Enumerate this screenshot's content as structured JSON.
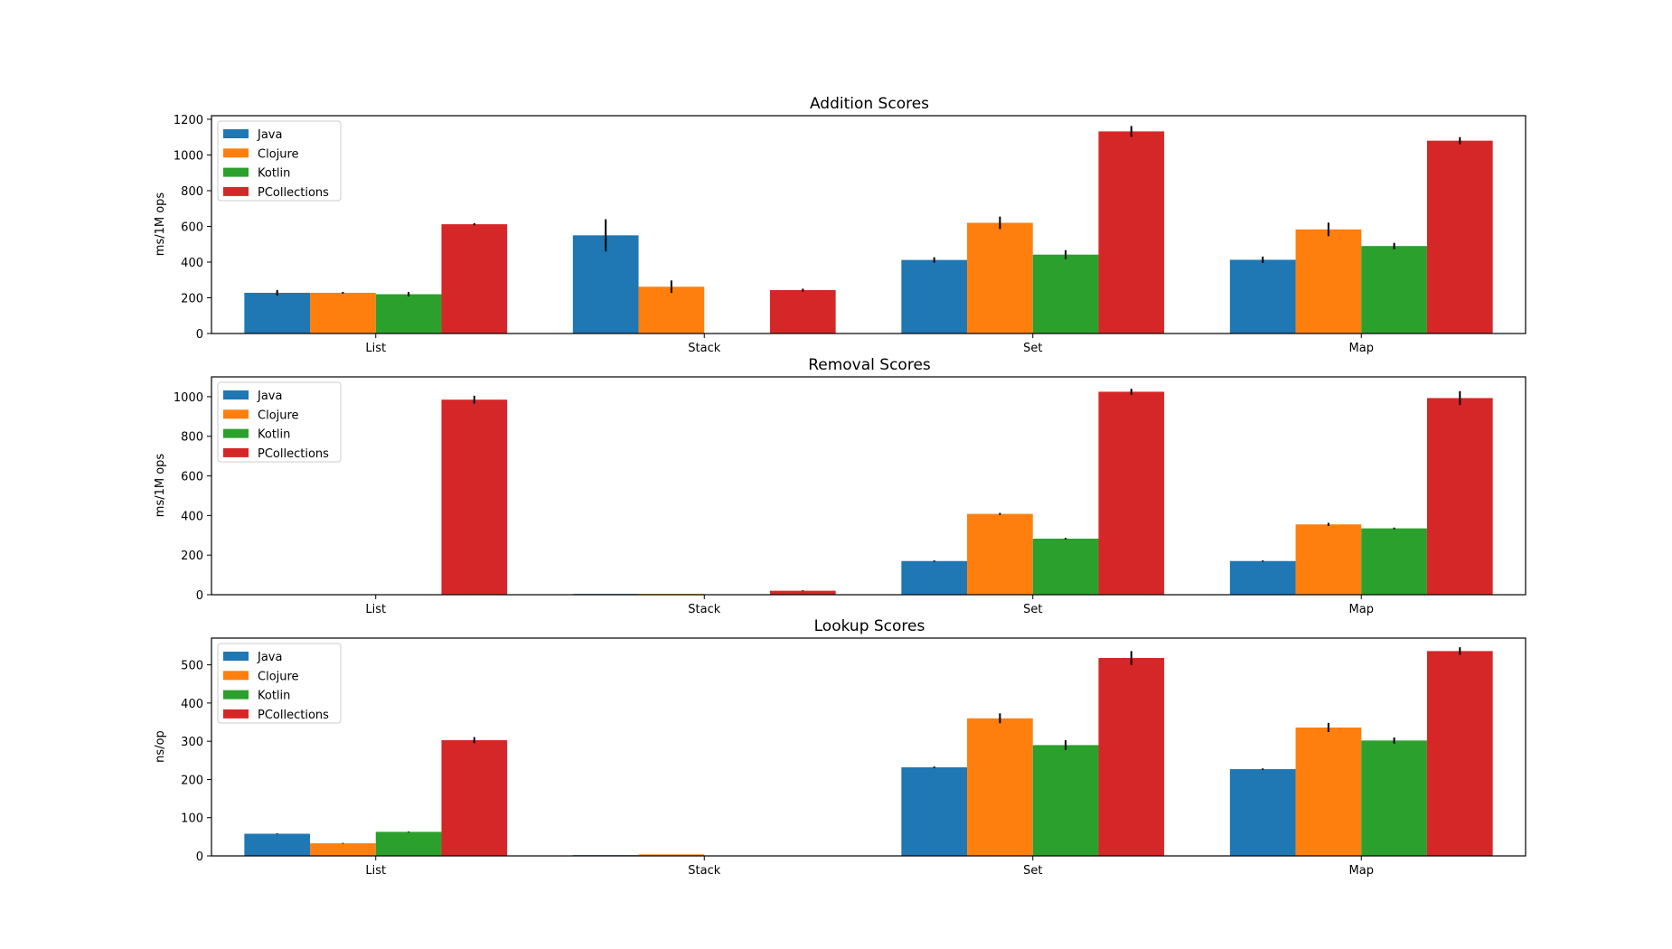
{
  "chart_data": [
    {
      "type": "bar",
      "title": "Addition Scores",
      "xlabel": "",
      "ylabel": "ms/1M ops",
      "ylim": [
        0,
        1220
      ],
      "yticks": [
        0,
        200,
        400,
        600,
        800,
        1000,
        1200
      ],
      "categories": [
        "List",
        "Stack",
        "Set",
        "Map"
      ],
      "legend_position": "top-left",
      "series": [
        {
          "name": "Java",
          "color": "#1f77b4",
          "values": [
            228,
            550,
            412,
            413
          ],
          "errors": [
            15,
            90,
            15,
            18
          ]
        },
        {
          "name": "Clojure",
          "color": "#ff7f0e",
          "values": [
            228,
            262,
            620,
            583
          ],
          "errors": [
            5,
            35,
            35,
            38
          ]
        },
        {
          "name": "Kotlin",
          "color": "#2ca02c",
          "values": [
            220,
            null,
            442,
            490
          ],
          "errors": [
            12,
            null,
            25,
            18
          ]
        },
        {
          "name": "PCollections",
          "color": "#d62728",
          "values": [
            612,
            243,
            1132,
            1080
          ],
          "errors": [
            6,
            8,
            30,
            20
          ]
        }
      ]
    },
    {
      "type": "bar",
      "title": "Removal Scores",
      "xlabel": "",
      "ylabel": "ms/1M ops",
      "ylim": [
        0,
        1100
      ],
      "yticks": [
        0,
        200,
        400,
        600,
        800,
        1000
      ],
      "categories": [
        "List",
        "Stack",
        "Set",
        "Map"
      ],
      "legend_position": "top-left",
      "series": [
        {
          "name": "Java",
          "color": "#1f77b4",
          "values": [
            null,
            4,
            170,
            170
          ],
          "errors": [
            null,
            0,
            3,
            3
          ]
        },
        {
          "name": "Clojure",
          "color": "#ff7f0e",
          "values": [
            null,
            4,
            408,
            355
          ],
          "errors": [
            null,
            0,
            5,
            8
          ]
        },
        {
          "name": "Kotlin",
          "color": "#2ca02c",
          "values": [
            null,
            null,
            283,
            335
          ],
          "errors": [
            null,
            null,
            4,
            4
          ]
        },
        {
          "name": "PCollections",
          "color": "#d62728",
          "values": [
            985,
            20,
            1025,
            993
          ],
          "errors": [
            20,
            2,
            15,
            35
          ]
        }
      ]
    },
    {
      "type": "bar",
      "title": "Lookup Scores",
      "xlabel": "",
      "ylabel": "ns/op",
      "ylim": [
        0,
        570
      ],
      "yticks": [
        0,
        100,
        200,
        300,
        400,
        500
      ],
      "categories": [
        "List",
        "Stack",
        "Set",
        "Map"
      ],
      "legend_position": "top-left",
      "series": [
        {
          "name": "Java",
          "color": "#1f77b4",
          "values": [
            58,
            2,
            232,
            227
          ],
          "errors": [
            1,
            0,
            2,
            2
          ]
        },
        {
          "name": "Clojure",
          "color": "#ff7f0e",
          "values": [
            33,
            4,
            360,
            336
          ],
          "errors": [
            1,
            0,
            13,
            12
          ]
        },
        {
          "name": "Kotlin",
          "color": "#2ca02c",
          "values": [
            63,
            null,
            290,
            302
          ],
          "errors": [
            1,
            null,
            13,
            8
          ]
        },
        {
          "name": "PCollections",
          "color": "#d62728",
          "values": [
            303,
            null,
            518,
            536
          ],
          "errors": [
            8,
            null,
            18,
            10
          ]
        }
      ]
    }
  ]
}
